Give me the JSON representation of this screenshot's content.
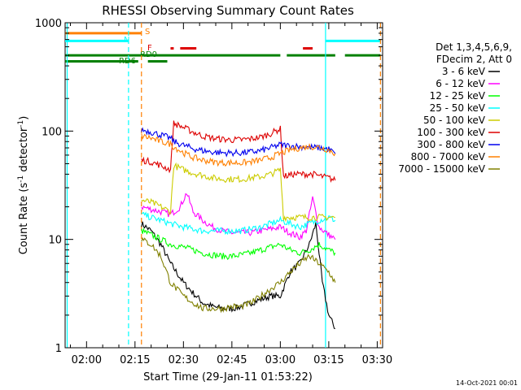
{
  "chart_data": {
    "type": "line",
    "title": "RHESSI Observing Summary Count Rates",
    "xlabel": "Start Time (29-Jan-11 01:53:22)",
    "ylabel": "Count Rate (s",
    "ylabel_sup": "-1",
    "ylabel_tail": " detector",
    "ylabel_end": ")",
    "yscale": "log",
    "xlim": [
      "01:53:22",
      "03:31:40"
    ],
    "ylim": [
      1,
      1000
    ],
    "x_ticks": [
      "02:00",
      "02:15",
      "02:30",
      "02:45",
      "03:00",
      "03:15",
      "03:30"
    ],
    "y_ticks": [
      "1",
      "10",
      "100",
      "1000"
    ],
    "y_tick_values": [
      1,
      10,
      100,
      1000
    ],
    "x_tick_values_min": [
      120,
      135,
      150,
      165,
      180,
      195,
      210
    ],
    "grid": false,
    "legend": {
      "placement": "right",
      "header": [
        "Det 1,3,4,5,6,9,",
        "FDecim 2, Att 0"
      ],
      "entries": [
        {
          "label": "3 - 6 keV",
          "color": "#000000"
        },
        {
          "label": "6 - 12 keV",
          "color": "#ff00ff"
        },
        {
          "label": "12 - 25 keV",
          "color": "#00ff00"
        },
        {
          "label": "25 - 50 keV",
          "color": "#00ffff"
        },
        {
          "label": "50 - 100 keV",
          "color": "#cccc00"
        },
        {
          "label": "100 - 300 keV",
          "color": "#dd0000"
        },
        {
          "label": "300 - 800 keV",
          "color": "#0000ee"
        },
        {
          "label": "800 - 7000 keV",
          "color": "#ff8000"
        },
        {
          "label": "7000 - 15000 keV",
          "color": "#808000"
        }
      ]
    },
    "state_bars": [
      {
        "label": "S",
        "color": "#ff8000",
        "level": 800,
        "intervals": [
          [
            "01:53",
            "02:17"
          ]
        ]
      },
      {
        "label": "N",
        "color": "#00ffff",
        "level": 680,
        "intervals": [
          [
            "01:53",
            "02:13"
          ],
          [
            "03:14",
            "03:31"
          ]
        ]
      },
      {
        "label": "F",
        "color": "#dd0000",
        "level": 580,
        "intervals": [
          [
            "02:26",
            "02:27"
          ],
          [
            "02:29",
            "02:34"
          ],
          [
            "03:07",
            "03:10"
          ]
        ]
      },
      {
        "label": "RD0",
        "color": "#008000",
        "level": 500,
        "intervals": [
          [
            "01:53",
            "03:00"
          ],
          [
            "03:02",
            "03:17"
          ],
          [
            "03:20",
            "03:31"
          ]
        ]
      },
      {
        "label": "RD6",
        "color": "#008000",
        "level": 440,
        "intervals": [
          [
            "01:53",
            "02:16"
          ],
          [
            "02:19",
            "02:25"
          ]
        ]
      }
    ],
    "vlines": [
      {
        "time": "01:54",
        "color": "#00ffff",
        "style": "solid"
      },
      {
        "time": "02:13",
        "color": "#00ffff",
        "style": "dashed"
      },
      {
        "time": "02:17",
        "color": "#ff8000",
        "style": "dashed"
      },
      {
        "time": "03:14",
        "color": "#00ffff",
        "style": "solid"
      },
      {
        "time": "03:31",
        "color": "#ff8000",
        "style": "dashed"
      }
    ],
    "series": [
      {
        "name": "3 - 6 keV",
        "color": "#000000",
        "x": [
          "02:17",
          "02:20",
          "02:23",
          "02:26",
          "02:30",
          "02:33",
          "02:36",
          "02:39",
          "02:42",
          "02:45",
          "02:48",
          "02:51",
          "02:54",
          "02:57",
          "03:00",
          "03:03",
          "03:06",
          "03:09",
          "03:11",
          "03:13",
          "03:15",
          "03:17"
        ],
        "y": [
          14,
          12,
          9,
          6,
          4,
          3.2,
          2.6,
          2.4,
          2.3,
          2.3,
          2.4,
          2.6,
          2.8,
          3,
          3,
          5,
          6,
          9,
          14,
          4,
          2,
          1.5
        ]
      },
      {
        "name": "6 - 12 keV",
        "color": "#ff00ff",
        "x": [
          "02:17",
          "02:20",
          "02:23",
          "02:26",
          "02:29",
          "02:31",
          "02:33",
          "02:36",
          "02:39",
          "02:42",
          "02:45",
          "02:48",
          "02:51",
          "02:54",
          "02:57",
          "03:00",
          "03:03",
          "03:06",
          "03:08",
          "03:10",
          "03:12",
          "03:15",
          "03:17"
        ],
        "y": [
          20,
          19,
          18,
          17,
          20,
          27,
          18,
          15,
          13,
          12,
          11.5,
          11.5,
          11.5,
          12,
          12.5,
          13,
          11.5,
          10.5,
          12,
          24,
          13,
          11,
          10
        ]
      },
      {
        "name": "12 - 25 keV",
        "color": "#00ff00",
        "x": [
          "02:17",
          "02:20",
          "02:23",
          "02:26",
          "02:30",
          "02:33",
          "02:36",
          "02:39",
          "02:42",
          "02:45",
          "02:48",
          "02:51",
          "02:54",
          "02:57",
          "03:00",
          "03:03",
          "03:06",
          "03:09",
          "03:12",
          "03:15",
          "03:17"
        ],
        "y": [
          12,
          11,
          10,
          9,
          8.5,
          8,
          7.5,
          7.2,
          7,
          7,
          7.2,
          7.5,
          8,
          8.5,
          9,
          8,
          7.5,
          8,
          9,
          8,
          7.5
        ]
      },
      {
        "name": "25 - 50 keV",
        "color": "#00ffff",
        "x": [
          "02:17",
          "02:20",
          "02:23",
          "02:26",
          "02:30",
          "02:33",
          "02:36",
          "02:39",
          "02:42",
          "02:45",
          "02:48",
          "02:51",
          "02:54",
          "02:57",
          "03:00",
          "03:03",
          "03:06",
          "03:09",
          "03:12",
          "03:15",
          "03:17"
        ],
        "y": [
          17,
          16,
          15,
          14,
          13,
          12.5,
          12,
          12,
          12,
          12,
          12,
          12.5,
          13,
          14,
          15,
          14,
          13,
          14,
          15,
          16,
          15
        ]
      },
      {
        "name": "50 - 100 keV",
        "color": "#cccc00",
        "x": [
          "02:17",
          "02:20",
          "02:23",
          "02:26",
          "02:27",
          "02:30",
          "02:33",
          "02:36",
          "02:39",
          "02:42",
          "02:45",
          "02:48",
          "02:51",
          "02:54",
          "02:57",
          "03:00",
          "03:01",
          "03:04",
          "03:07",
          "03:10",
          "03:13",
          "03:15",
          "03:17"
        ],
        "y": [
          23,
          22,
          20,
          18,
          48,
          44,
          41,
          39,
          37,
          36,
          36,
          36,
          37,
          38,
          40,
          44,
          16,
          16,
          16,
          16,
          16,
          16,
          16
        ]
      },
      {
        "name": "100 - 300 keV",
        "color": "#dd0000",
        "x": [
          "02:17",
          "02:20",
          "02:23",
          "02:26",
          "02:27",
          "02:30",
          "02:33",
          "02:36",
          "02:39",
          "02:42",
          "02:45",
          "02:48",
          "02:51",
          "02:54",
          "02:57",
          "03:00",
          "03:01",
          "03:04",
          "03:07",
          "03:10",
          "03:13",
          "03:15",
          "03:17"
        ],
        "y": [
          54,
          52,
          48,
          44,
          118,
          108,
          98,
          90,
          86,
          84,
          83,
          83,
          85,
          88,
          95,
          105,
          38,
          40,
          40,
          40,
          38,
          37,
          35
        ]
      },
      {
        "name": "300 - 800 keV",
        "color": "#0000ee",
        "x": [
          "02:17",
          "02:20",
          "02:23",
          "02:26",
          "02:27",
          "02:30",
          "02:33",
          "02:36",
          "02:39",
          "02:42",
          "02:45",
          "02:48",
          "02:51",
          "02:54",
          "02:57",
          "03:00",
          "03:03",
          "03:06",
          "03:09",
          "03:12",
          "03:15",
          "03:17"
        ],
        "y": [
          103,
          98,
          92,
          86,
          80,
          74,
          69,
          66,
          64,
          63,
          63,
          63,
          64,
          66,
          70,
          75,
          73,
          72,
          71,
          70,
          68,
          62
        ]
      },
      {
        "name": "800 - 7000 keV",
        "color": "#ff8000",
        "x": [
          "02:17",
          "02:20",
          "02:23",
          "02:26",
          "02:27",
          "02:30",
          "02:33",
          "02:36",
          "02:39",
          "02:42",
          "02:45",
          "02:48",
          "02:51",
          "02:54",
          "02:57",
          "03:00",
          "03:03",
          "03:06",
          "03:09",
          "03:12",
          "03:15",
          "03:17"
        ],
        "y": [
          90,
          86,
          80,
          76,
          72,
          63,
          57,
          54,
          52,
          51,
          51,
          51,
          52,
          54,
          57,
          62,
          67,
          70,
          72,
          71,
          67,
          62
        ]
      },
      {
        "name": "7000 - 15000 keV",
        "color": "#808000",
        "x": [
          "02:17",
          "02:20",
          "02:23",
          "02:26",
          "02:30",
          "02:33",
          "02:36",
          "02:39",
          "02:42",
          "02:45",
          "02:48",
          "02:51",
          "02:54",
          "02:57",
          "03:00",
          "03:03",
          "03:06",
          "03:09",
          "03:12",
          "03:15",
          "03:17"
        ],
        "y": [
          10,
          9,
          7,
          4,
          3,
          2.6,
          2.3,
          2.3,
          2.3,
          2.4,
          2.4,
          2.6,
          3,
          3.5,
          4,
          5,
          6,
          7,
          6,
          5,
          4
        ]
      }
    ]
  },
  "footer": {
    "timestamp": "14-Oct-2021 00:01"
  }
}
